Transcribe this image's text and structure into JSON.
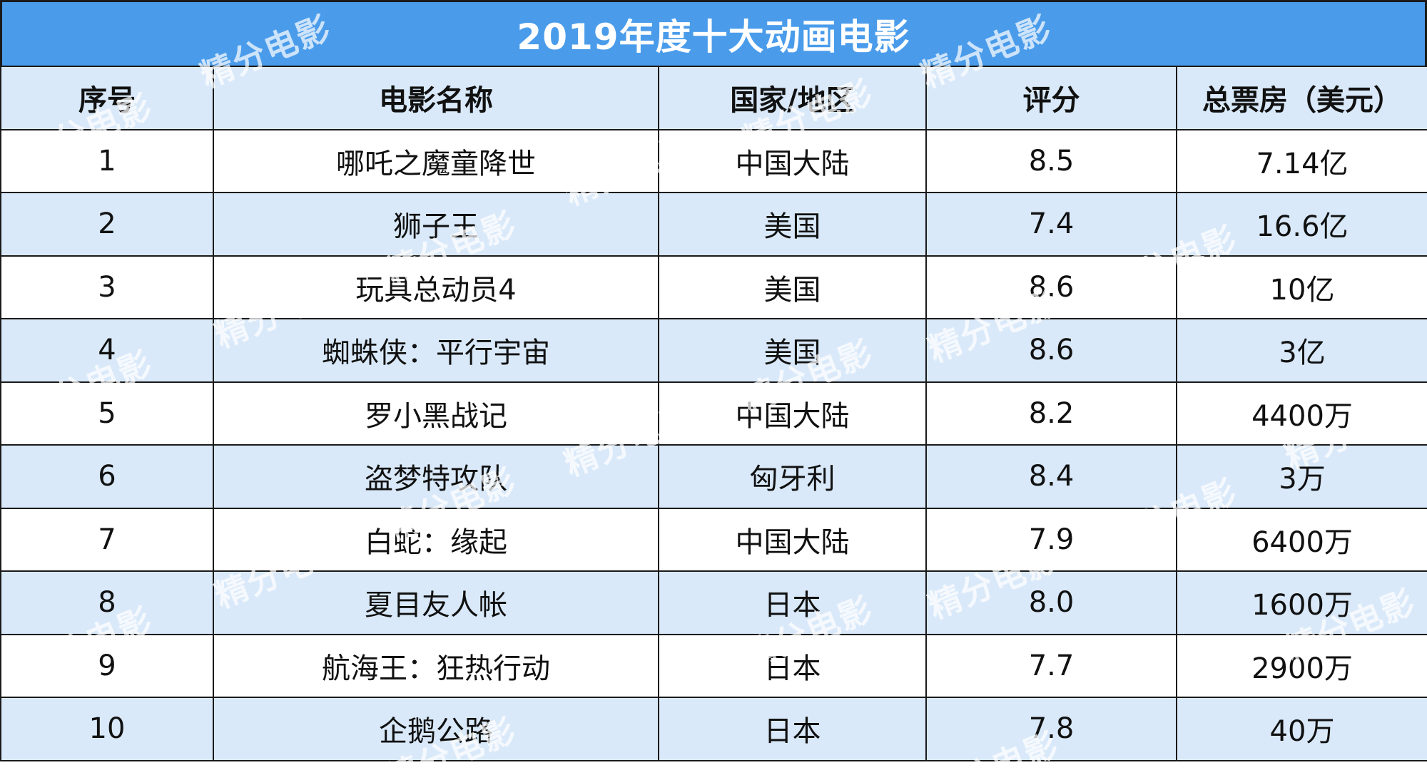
{
  "title": "2019年度十大动画电影",
  "headers": {
    "rank": "序号",
    "name": "电影名称",
    "country": "国家/地区",
    "score": "评分",
    "box_office": "总票房（美元）"
  },
  "rows": [
    {
      "rank": "1",
      "name": "哪吒之魔童降世",
      "country": "中国大陆",
      "score": "8.5",
      "box_office": "7.14亿"
    },
    {
      "rank": "2",
      "name": "狮子王",
      "country": "美国",
      "score": "7.4",
      "box_office": "16.6亿"
    },
    {
      "rank": "3",
      "name": "玩具总动员4",
      "country": "美国",
      "score": "8.6",
      "box_office": "10亿"
    },
    {
      "rank": "4",
      "name": "蜘蛛侠：平行宇宙",
      "country": "美国",
      "score": "8.6",
      "box_office": "3亿"
    },
    {
      "rank": "5",
      "name": "罗小黑战记",
      "country": "中国大陆",
      "score": "8.2",
      "box_office": "4400万"
    },
    {
      "rank": "6",
      "name": "盗梦特攻队",
      "country": "匈牙利",
      "score": "8.4",
      "box_office": "3万"
    },
    {
      "rank": "7",
      "name": "白蛇：缘起",
      "country": "中国大陆",
      "score": "7.9",
      "box_office": "6400万"
    },
    {
      "rank": "8",
      "name": "夏目友人帐",
      "country": "日本",
      "score": "8.0",
      "box_office": "1600万"
    },
    {
      "rank": "9",
      "name": "航海王：狂热行动",
      "country": "日本",
      "score": "7.7",
      "box_office": "2900万"
    },
    {
      "rank": "10",
      "name": "企鹅公路",
      "country": "日本",
      "score": "7.8",
      "box_office": "40万"
    }
  ],
  "watermark": "精分电影",
  "colors": {
    "title_bg": "#4a9ceb",
    "header_bg": "#d9e9f9",
    "stripe_bg": "#d9e9f9",
    "grid": "#1a1a1a"
  }
}
